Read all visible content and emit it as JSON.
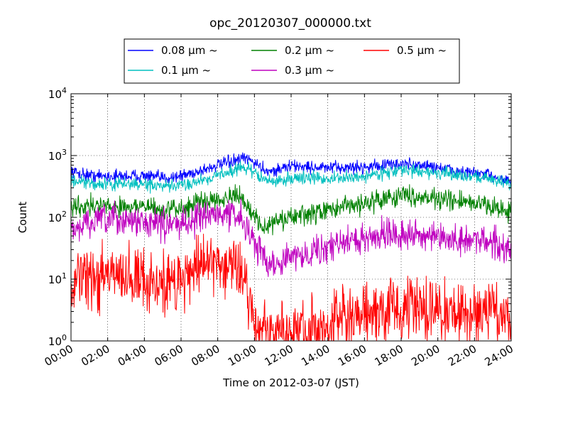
{
  "chart_data": {
    "type": "line",
    "title": "opc_20120307_000000.txt",
    "xlabel": "Time on 2012-03-07 (JST)",
    "ylabel": "Count",
    "xlim": [
      0,
      24
    ],
    "ylim": [
      1,
      10000
    ],
    "yscale": "log",
    "grid": true,
    "legend_position": "top, above plot",
    "x_tick_labels": [
      "00:00",
      "02:00",
      "04:00",
      "06:00",
      "08:00",
      "10:00",
      "12:00",
      "14:00",
      "16:00",
      "18:00",
      "20:00",
      "22:00",
      "24:00"
    ],
    "y_tick_values": [
      1,
      10,
      100,
      1000,
      10000
    ],
    "y_tick_labels": [
      {
        "base": "10",
        "exp": "0"
      },
      {
        "base": "10",
        "exp": "1"
      },
      {
        "base": "10",
        "exp": "2"
      },
      {
        "base": "10",
        "exp": "3"
      },
      {
        "base": "10",
        "exp": "4"
      }
    ],
    "x": [
      0,
      1,
      2,
      3,
      4,
      5,
      6,
      7,
      8,
      9,
      9.5,
      10,
      10.5,
      11,
      12,
      13,
      14,
      15,
      16,
      17,
      18,
      19,
      20,
      21,
      22,
      23,
      24
    ],
    "series": [
      {
        "name": "0.08 μm ~",
        "color": "#0000ff",
        "noise": 0.05,
        "values": [
          550,
          480,
          460,
          470,
          470,
          430,
          470,
          560,
          700,
          820,
          900,
          780,
          600,
          560,
          680,
          650,
          630,
          640,
          650,
          700,
          730,
          700,
          650,
          560,
          520,
          470,
          380
        ]
      },
      {
        "name": "0.1 μm ~",
        "color": "#00bfbf",
        "noise": 0.05,
        "values": [
          380,
          350,
          340,
          350,
          340,
          310,
          330,
          390,
          480,
          600,
          650,
          520,
          420,
          370,
          430,
          440,
          420,
          430,
          460,
          530,
          580,
          560,
          520,
          480,
          460,
          420,
          330
        ]
      },
      {
        "name": "0.2 μm ~",
        "color": "#008000",
        "noise": 0.08,
        "values": [
          150,
          160,
          150,
          150,
          150,
          130,
          140,
          170,
          210,
          210,
          180,
          100,
          70,
          80,
          100,
          110,
          130,
          150,
          170,
          200,
          230,
          220,
          200,
          180,
          170,
          150,
          120
        ]
      },
      {
        "name": "0.3 μm ~",
        "color": "#bf00bf",
        "noise": 0.12,
        "values": [
          55,
          85,
          90,
          90,
          85,
          75,
          80,
          100,
          115,
          110,
          80,
          40,
          22,
          18,
          22,
          28,
          32,
          40,
          45,
          55,
          55,
          50,
          45,
          40,
          45,
          40,
          30
        ]
      },
      {
        "name": "0.5 μm ~",
        "color": "#ff0000",
        "noise": 0.25,
        "values": [
          8,
          10,
          11,
          11,
          10,
          8,
          10,
          18,
          20,
          18,
          9,
          2,
          1.4,
          1.3,
          1.4,
          1.5,
          1.7,
          2,
          2.4,
          3,
          3.2,
          3.2,
          3,
          2.8,
          3,
          3,
          2.5
        ]
      }
    ]
  }
}
